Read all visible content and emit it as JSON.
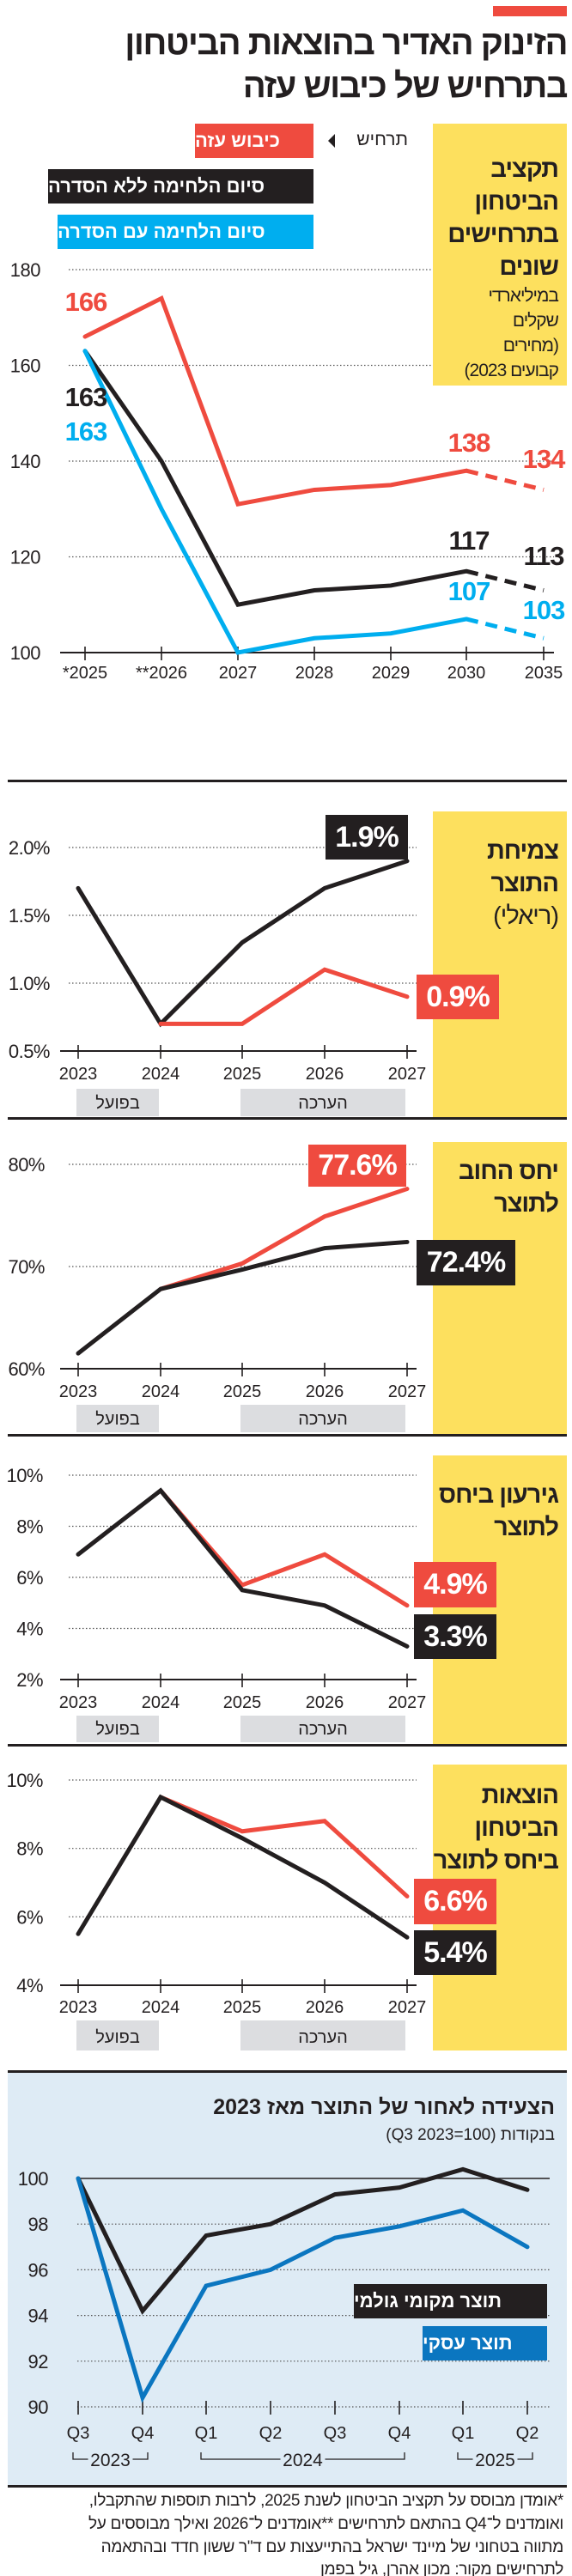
{
  "header": {
    "title_line1": "הזינוק האדיר בהוצאות הביטחון",
    "title_line2": "בתרחיש של כיבוש עזה",
    "accent_color": "#ef4b3f"
  },
  "legend": {
    "scenario_label": "תרחיש",
    "items": [
      {
        "label": "כיבוש עזה",
        "color": "#ef4b3f"
      },
      {
        "label": "סיום הלחימה ללא הסדרה",
        "color": "#231f20"
      },
      {
        "label": "סיום הלחימה עם הסדרה",
        "color": "#00aeef"
      }
    ]
  },
  "chart_data": [
    {
      "type": "line",
      "title_lines": [
        "תקציב",
        "הביטחון",
        "בתרחישים",
        "שונים"
      ],
      "subtitle_lines": [
        "במיליארדי",
        "שקלים",
        "(מחירים",
        "קבועים 2023)"
      ],
      "categories": [
        "*2025",
        "**2026",
        "2027",
        "2028",
        "2029",
        "2030",
        "2035"
      ],
      "yticks": [
        100,
        120,
        140,
        160,
        180
      ],
      "ytick_labels": [
        "100",
        "120",
        "140",
        "160",
        "180"
      ],
      "ylim": [
        100,
        180
      ],
      "grid": true,
      "series": [
        {
          "name": "כיבוש עזה",
          "color": "#ef4b3f",
          "values": [
            166,
            174,
            131,
            134,
            135,
            138,
            134
          ]
        },
        {
          "name": "סיום הלחימה ללא הסדרה",
          "color": "#231f20",
          "values": [
            163,
            140,
            110,
            113,
            114,
            117,
            113
          ]
        },
        {
          "name": "סיום הלחימה עם הסדרה",
          "color": "#00aeef",
          "values": [
            163,
            130,
            100,
            103,
            104,
            107,
            103
          ]
        }
      ],
      "labeled_values": [
        {
          "series": 0,
          "index": 0,
          "text": "166"
        },
        {
          "series": 1,
          "index": 0,
          "text": "163"
        },
        {
          "series": 2,
          "index": 0,
          "text": "163"
        },
        {
          "series": 0,
          "index": 5,
          "text": "138"
        },
        {
          "series": 0,
          "index": 6,
          "text": "134"
        },
        {
          "series": 1,
          "index": 5,
          "text": "117"
        },
        {
          "series": 1,
          "index": 6,
          "text": "113"
        },
        {
          "series": 2,
          "index": 5,
          "text": "107"
        },
        {
          "series": 2,
          "index": 6,
          "text": "103"
        }
      ]
    },
    {
      "type": "line",
      "title_lines": [
        "צמיחת",
        "התוצר",
        "(ריאלי)"
      ],
      "categories": [
        "2023",
        "2024",
        "2025",
        "2026",
        "2027"
      ],
      "yticks": [
        0.5,
        1.0,
        1.5,
        2.0
      ],
      "ytick_labels": [
        "0.5%",
        "1.0%",
        "1.5%",
        "2.0%"
      ],
      "ylim": [
        0.5,
        2.0
      ],
      "grid": true,
      "periods": [
        {
          "label": "בפועל",
          "from": 0,
          "to": 1
        },
        {
          "label": "הערכה",
          "from": 2,
          "to": 4
        }
      ],
      "series": [
        {
          "color": "#231f20",
          "values": [
            1.7,
            0.7,
            1.3,
            1.7,
            1.9
          ],
          "end_label": "1.9%"
        },
        {
          "color": "#ef4b3f",
          "values": [
            null,
            0.7,
            0.7,
            1.1,
            0.9
          ],
          "end_label": "0.9%"
        }
      ]
    },
    {
      "type": "line",
      "title_lines": [
        "יחס החוב",
        "לתוצר"
      ],
      "categories": [
        "2023",
        "2024",
        "2025",
        "2026",
        "2027"
      ],
      "yticks": [
        60,
        70,
        80
      ],
      "ytick_labels": [
        "60%",
        "70%",
        "80%"
      ],
      "ylim": [
        60,
        80
      ],
      "grid": true,
      "periods": [
        {
          "label": "בפועל",
          "from": 0,
          "to": 1
        },
        {
          "label": "הערכה",
          "from": 2,
          "to": 4
        }
      ],
      "series": [
        {
          "color": "#ef4b3f",
          "values": [
            null,
            67.8,
            70.3,
            74.9,
            77.6
          ],
          "end_label": "77.6%"
        },
        {
          "color": "#231f20",
          "values": [
            61.5,
            67.8,
            69.7,
            71.8,
            72.4
          ],
          "end_label": "72.4%"
        }
      ]
    },
    {
      "type": "line",
      "title_lines": [
        "גירעון ביחס",
        "לתוצר"
      ],
      "categories": [
        "2023",
        "2024",
        "2025",
        "2026",
        "2027"
      ],
      "yticks": [
        2,
        4,
        6,
        8,
        10
      ],
      "ytick_labels": [
        "2%",
        "4%",
        "6%",
        "8%",
        "10%"
      ],
      "ylim": [
        2,
        10
      ],
      "grid": true,
      "periods": [
        {
          "label": "בפועל",
          "from": 0,
          "to": 1
        },
        {
          "label": "הערכה",
          "from": 2,
          "to": 4
        }
      ],
      "series": [
        {
          "color": "#ef4b3f",
          "values": [
            null,
            9.4,
            5.7,
            6.9,
            4.9
          ],
          "end_label": "4.9%"
        },
        {
          "color": "#231f20",
          "values": [
            6.9,
            9.4,
            5.5,
            4.9,
            3.3
          ],
          "end_label": "3.3%"
        }
      ]
    },
    {
      "type": "line",
      "title_lines": [
        "הוצאות",
        "הביטחון",
        "ביחס לתוצר"
      ],
      "categories": [
        "2023",
        "2024",
        "2025",
        "2026",
        "2027"
      ],
      "yticks": [
        4,
        6,
        8,
        10
      ],
      "ytick_labels": [
        "4%",
        "6%",
        "8%",
        "10%"
      ],
      "ylim": [
        4,
        10
      ],
      "grid": true,
      "periods": [
        {
          "label": "בפועל",
          "from": 0,
          "to": 1
        },
        {
          "label": "הערכה",
          "from": 2,
          "to": 4
        }
      ],
      "series": [
        {
          "color": "#ef4b3f",
          "values": [
            null,
            9.5,
            8.5,
            8.8,
            6.6
          ],
          "end_label": "6.6%"
        },
        {
          "color": "#231f20",
          "values": [
            5.5,
            9.5,
            8.3,
            7.0,
            5.4
          ],
          "end_label": "5.4%"
        }
      ]
    },
    {
      "type": "line",
      "title": "הצעידה לאחור של התוצר מאז 2023",
      "subtitle": "בנקודות (Q3 2023=100)",
      "categories": [
        "Q3",
        "Q4",
        "Q1",
        "Q2",
        "Q3",
        "Q4",
        "Q1",
        "Q2"
      ],
      "year_groups": [
        {
          "label": "2023",
          "from": 0,
          "to": 1
        },
        {
          "label": "2024",
          "from": 2,
          "to": 5
        },
        {
          "label": "2025",
          "from": 6,
          "to": 7
        }
      ],
      "yticks": [
        90,
        92,
        94,
        96,
        98,
        100
      ],
      "ytick_labels": [
        "90",
        "92",
        "94",
        "96",
        "98",
        "100"
      ],
      "ylim": [
        90,
        100
      ],
      "grid": true,
      "background": "#deebf5",
      "series": [
        {
          "name": "תוצר מקומי גולמי",
          "color": "#231f20",
          "values": [
            100,
            94.2,
            97.5,
            98.0,
            99.3,
            99.6,
            100.4,
            99.5
          ]
        },
        {
          "name": "תוצר עסקי",
          "color": "#0b76c0",
          "values": [
            100,
            90.4,
            95.3,
            96.0,
            97.4,
            97.9,
            98.6,
            97.0
          ]
        }
      ]
    }
  ],
  "footer": {
    "lines": [
      "*אומדן מבוסס על תקציב הביטחון לשנת 2025, לרבות תוספות שהתקבלו,",
      "ואומדנים ל־Q4 בהתאם לתרחישים **אומדנים ל־2026 ואילך מבוססים על",
      "מתווה בטחוני של מיינד ישראל בהתייעצות עם ד\"ר ששון חדד ובהתאמה",
      "לתרחישים מקור: מכון אהרן, גיל בפמן"
    ]
  }
}
